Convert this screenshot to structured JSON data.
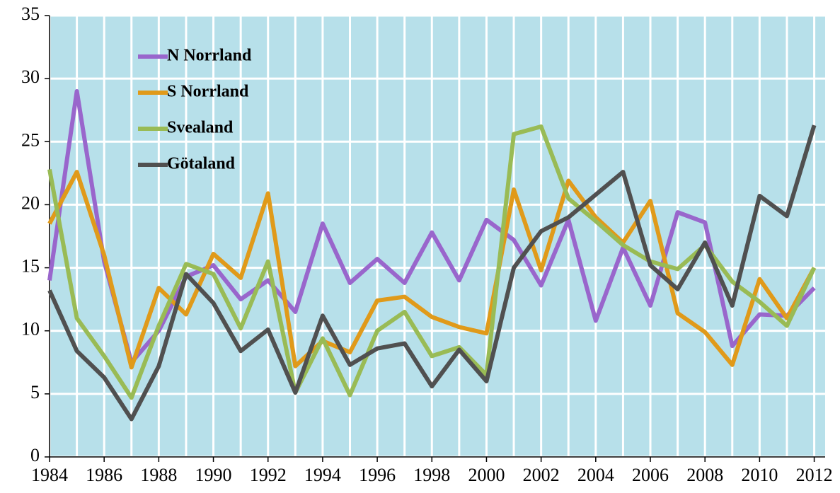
{
  "chart_data": {
    "type": "line",
    "x": [
      1984,
      1985,
      1986,
      1987,
      1988,
      1989,
      1990,
      1991,
      1992,
      1993,
      1994,
      1995,
      1996,
      1997,
      1998,
      1999,
      2000,
      2001,
      2002,
      2003,
      2004,
      2005,
      2006,
      2007,
      2008,
      2009,
      2010,
      2011,
      2012
    ],
    "series": [
      {
        "name": "N Norrland",
        "color": "#9966cc",
        "values": [
          14,
          29,
          15.5,
          7.5,
          10,
          14.3,
          15.2,
          12.5,
          14,
          11.5,
          18.5,
          13.8,
          15.7,
          13.8,
          17.8,
          14,
          18.8,
          17.2,
          13.6,
          18.8,
          10.8,
          16.6,
          12,
          19.4,
          18.6,
          8.8,
          11.3,
          11.2,
          13.4
        ]
      },
      {
        "name": "S Norrland",
        "color": "#e09a1a",
        "values": [
          18.5,
          22.6,
          16,
          7.1,
          13.4,
          11.3,
          16.1,
          14.2,
          20.9,
          7.2,
          9.2,
          8.3,
          12.4,
          12.7,
          11.1,
          10.3,
          9.8,
          21.2,
          14.8,
          21.9,
          19,
          17,
          20.3,
          11.4,
          9.9,
          7.3,
          14.1,
          11,
          15
        ]
      },
      {
        "name": "Svealand",
        "color": "#99bb55",
        "values": [
          22.8,
          11,
          8,
          4.7,
          10.4,
          15.3,
          14.5,
          10.2,
          15.5,
          5.1,
          9.4,
          4.9,
          10,
          11.5,
          8,
          8.7,
          6.5,
          25.6,
          26.2,
          20.5,
          18.7,
          16.8,
          15.5,
          14.9,
          16.8,
          13.9,
          12.3,
          10.4,
          15
        ]
      },
      {
        "name": "Götaland",
        "color": "#505050",
        "values": [
          13.2,
          8.4,
          6.3,
          3,
          7.2,
          14.5,
          12.2,
          8.4,
          10.1,
          5.1,
          11.2,
          7.3,
          8.6,
          9,
          5.6,
          8.5,
          6,
          15,
          17.9,
          19,
          20.8,
          22.6,
          15.2,
          13.3,
          17,
          12,
          20.7,
          19.1,
          26.3
        ]
      }
    ],
    "xlim": [
      1984,
      2012.4
    ],
    "xticks": [
      1984,
      1986,
      1988,
      1990,
      1992,
      1994,
      1996,
      1998,
      2000,
      2002,
      2004,
      2006,
      2008,
      2010,
      2012
    ],
    "ylim": [
      0,
      35
    ],
    "yticks": [
      0,
      5,
      10,
      15,
      20,
      25,
      30,
      35
    ],
    "grid": true,
    "background": "#b7e0ea",
    "legend": "upper left"
  }
}
